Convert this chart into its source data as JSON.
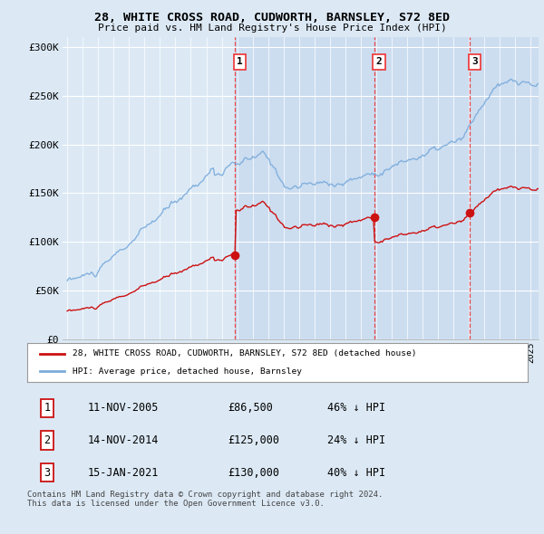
{
  "title": "28, WHITE CROSS ROAD, CUDWORTH, BARNSLEY, S72 8ED",
  "subtitle": "Price paid vs. HM Land Registry's House Price Index (HPI)",
  "background_color": "#dce9f5",
  "plot_bg_color": "#dce9f5",
  "plot_bg_shaded": "#ccddf0",
  "ylabel_ticks": [
    "£0",
    "£50K",
    "£100K",
    "£150K",
    "£200K",
    "£250K",
    "£300K"
  ],
  "ytick_values": [
    0,
    50000,
    100000,
    150000,
    200000,
    250000,
    300000
  ],
  "ylim": [
    0,
    310000
  ],
  "xlim_start": 1994.7,
  "xlim_end": 2025.5,
  "sale_dates": [
    2005.87,
    2014.88,
    2021.05
  ],
  "sale_prices": [
    86500,
    125000,
    130000
  ],
  "sale_labels": [
    "1",
    "2",
    "3"
  ],
  "hpi_color": "#7aabdb",
  "price_color": "#cc1111",
  "vline_color": "#ee3333",
  "legend_label_price": "28, WHITE CROSS ROAD, CUDWORTH, BARNSLEY, S72 8ED (detached house)",
  "legend_label_hpi": "HPI: Average price, detached house, Barnsley",
  "table_rows": [
    [
      "1",
      "11-NOV-2005",
      "£86,500",
      "46% ↓ HPI"
    ],
    [
      "2",
      "14-NOV-2014",
      "£125,000",
      "24% ↓ HPI"
    ],
    [
      "3",
      "15-JAN-2021",
      "£130,000",
      "40% ↓ HPI"
    ]
  ],
  "footer": "Contains HM Land Registry data © Crown copyright and database right 2024.\nThis data is licensed under the Open Government Licence v3.0."
}
